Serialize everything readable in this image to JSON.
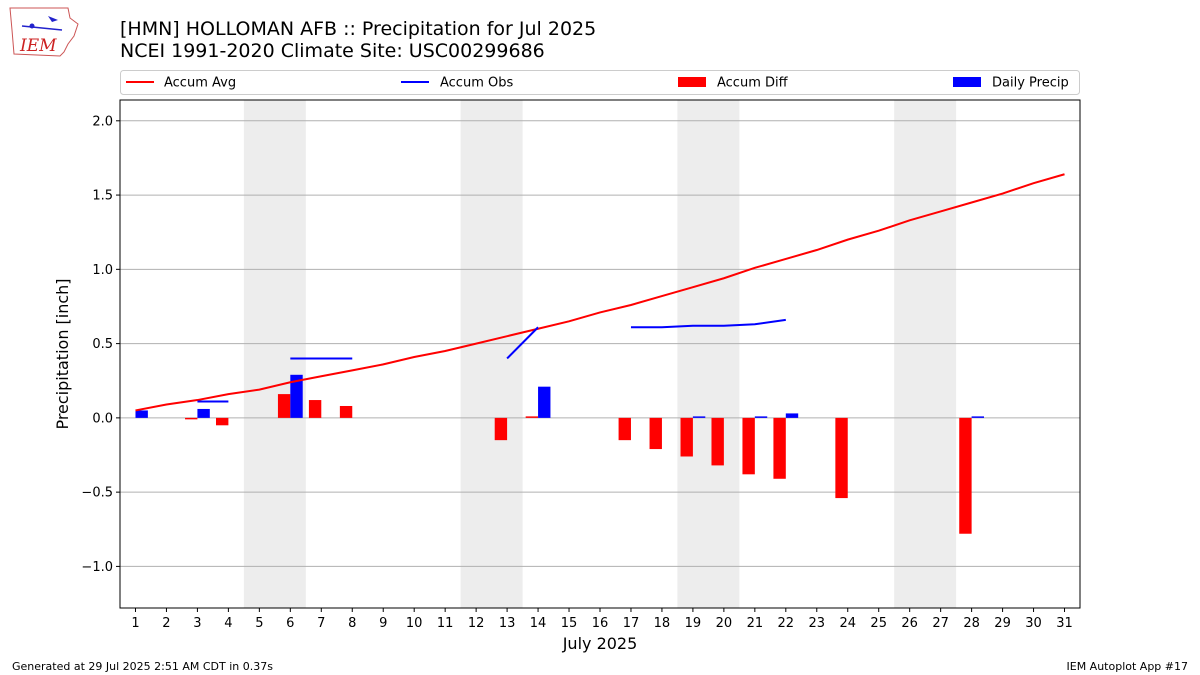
{
  "header": {
    "title": "[HMN] HOLLOMAN AFB :: Precipitation for Jul 2025",
    "subtitle": "NCEI 1991-2020 Climate Site: USC00299686"
  },
  "logo": {
    "text": "IEM"
  },
  "footer": {
    "left": "Generated at 29 Jul 2025 2:51 AM CDT in 0.37s",
    "right": "IEM Autoplot App #17"
  },
  "colors": {
    "accum_avg": "#ff0000",
    "accum_obs": "#0000ff",
    "accum_diff": "#ff0000",
    "daily_precip": "#0000ff",
    "weekend_band": "#ededed",
    "grid": "#b0b0b0"
  },
  "chart_data": {
    "type": "bar",
    "xlabel": "July 2025",
    "ylabel": "Precipitation [inch]",
    "xlim": [
      0.5,
      31.5
    ],
    "ylim": [
      -1.28,
      2.14
    ],
    "yticks": [
      -1.0,
      -0.5,
      0.0,
      0.5,
      1.0,
      1.5,
      2.0
    ],
    "ytick_labels": [
      "−1.0",
      "−0.5",
      "0.0",
      "0.5",
      "1.0",
      "1.5",
      "2.0"
    ],
    "x_ticks": [
      1,
      2,
      3,
      4,
      5,
      6,
      7,
      8,
      9,
      10,
      11,
      12,
      13,
      14,
      15,
      16,
      17,
      18,
      19,
      20,
      21,
      22,
      23,
      24,
      25,
      26,
      27,
      28,
      29,
      30,
      31
    ],
    "grid": "horizontal",
    "legend_position": "top",
    "shaded_days": [
      [
        5,
        6
      ],
      [
        12,
        13
      ],
      [
        19,
        20
      ],
      [
        26,
        27
      ]
    ],
    "legend": [
      "Accum Avg",
      "Accum Obs",
      "Accum Diff",
      "Daily Precip"
    ],
    "series": [
      {
        "name": "Accum Avg",
        "type": "line",
        "x": [
          1,
          2,
          3,
          4,
          5,
          6,
          7,
          8,
          9,
          10,
          11,
          12,
          13,
          14,
          15,
          16,
          17,
          18,
          19,
          20,
          21,
          22,
          23,
          24,
          25,
          26,
          27,
          28,
          29,
          30,
          31
        ],
        "values": [
          0.05,
          0.09,
          0.12,
          0.16,
          0.19,
          0.24,
          0.28,
          0.32,
          0.36,
          0.41,
          0.45,
          0.5,
          0.55,
          0.6,
          0.65,
          0.71,
          0.76,
          0.82,
          0.88,
          0.94,
          1.01,
          1.07,
          1.13,
          1.2,
          1.26,
          1.33,
          1.39,
          1.45,
          1.51,
          1.58,
          1.64
        ]
      },
      {
        "name": "Accum Obs",
        "type": "line",
        "segments": [
          {
            "x": [
              1
            ],
            "values": [
              0.05
            ]
          },
          {
            "x": [
              3,
              4
            ],
            "values": [
              0.11,
              0.11
            ]
          },
          {
            "x": [
              6,
              7,
              8
            ],
            "values": [
              0.4,
              0.4,
              0.4
            ]
          },
          {
            "x": [
              13,
              14
            ],
            "values": [
              0.4,
              0.61
            ]
          },
          {
            "x": [
              17,
              18,
              19,
              20,
              21,
              22
            ],
            "values": [
              0.61,
              0.61,
              0.62,
              0.62,
              0.63,
              0.66
            ]
          }
        ]
      },
      {
        "name": "Accum Diff",
        "type": "bar",
        "x": [
          1,
          2,
          3,
          4,
          5,
          6,
          7,
          8,
          9,
          10,
          11,
          12,
          13,
          14,
          15,
          16,
          17,
          18,
          19,
          20,
          21,
          22,
          23,
          24,
          25,
          26,
          27,
          28,
          29,
          30,
          31
        ],
        "values": [
          0,
          0,
          -0.01,
          -0.05,
          0,
          0.16,
          0.12,
          0.08,
          0,
          0,
          0,
          0,
          -0.15,
          0.01,
          0,
          0,
          -0.15,
          -0.21,
          -0.26,
          -0.32,
          -0.38,
          -0.41,
          0,
          -0.54,
          0,
          0,
          0,
          -0.78,
          0,
          0,
          0
        ]
      },
      {
        "name": "Daily Precip",
        "type": "bar",
        "x": [
          1,
          2,
          3,
          4,
          5,
          6,
          7,
          8,
          9,
          10,
          11,
          12,
          13,
          14,
          15,
          16,
          17,
          18,
          19,
          20,
          21,
          22,
          23,
          24,
          25,
          26,
          27,
          28,
          29,
          30,
          31
        ],
        "values": [
          0.05,
          0,
          0.06,
          0,
          0,
          0.29,
          0,
          0,
          0,
          0,
          0,
          0,
          0,
          0.21,
          0,
          0,
          0,
          0,
          0.01,
          0,
          0.01,
          0.03,
          0,
          0,
          0,
          0,
          0,
          0.01,
          0,
          0,
          0
        ]
      }
    ]
  }
}
